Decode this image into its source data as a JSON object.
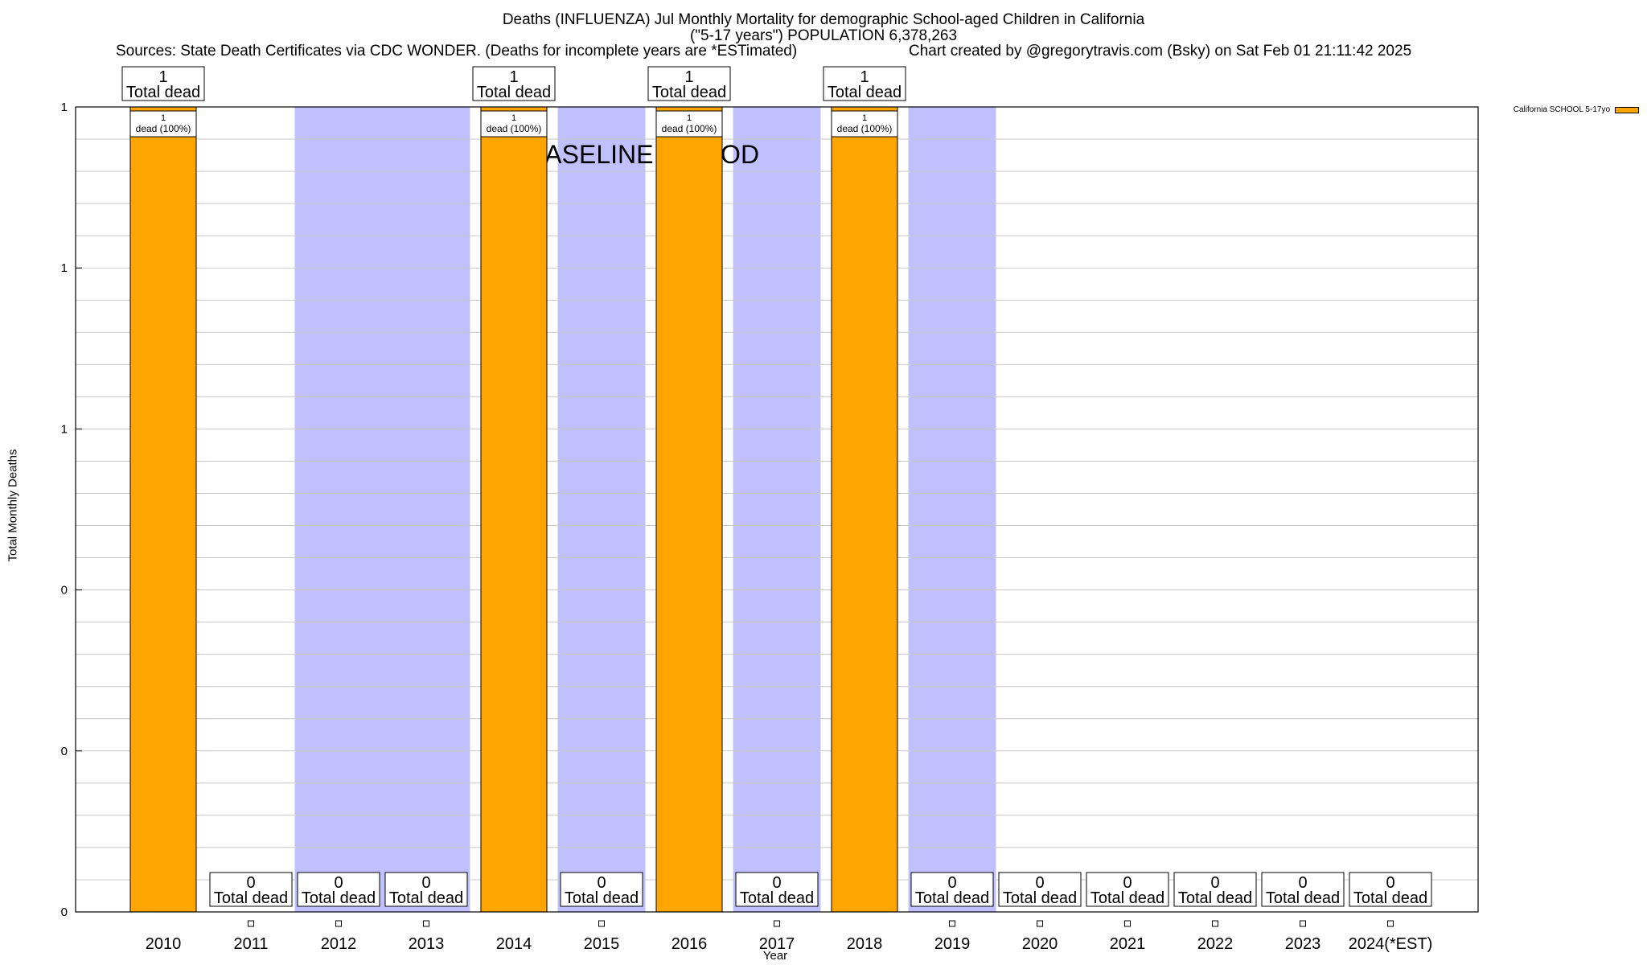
{
  "chart_data": {
    "type": "bar",
    "title": "Deaths (INFLUENZA) Jul Monthly Mortality for demographic School-aged Children in California",
    "subtitle": "(\"5-17 years\") POPULATION 6,378,263",
    "source": "Sources: State Death Certificates via CDC WONDER. (Deaths for incomplete years are *ESTimated)",
    "credit": "Chart created by @gregorytravis.com (Bsky) on Sat Feb 01 21:11:42 2025",
    "xlabel": "Year",
    "ylabel": "Total Monthly Deaths",
    "categories": [
      "2010",
      "2011",
      "2012",
      "2013",
      "2014",
      "2015",
      "2016",
      "2017",
      "2018",
      "2019",
      "2020",
      "2021",
      "2022",
      "2023",
      "2024(*EST)"
    ],
    "series": [
      {
        "name": "California SCHOOL 5-17yo",
        "color": "#ffa500",
        "values": [
          1,
          0,
          0,
          0,
          1,
          0,
          1,
          0,
          1,
          0,
          0,
          0,
          0,
          0,
          0
        ]
      }
    ],
    "total_labels": [
      "1\nTotal dead",
      "0\nTotal dead",
      "0\nTotal dead",
      "0\nTotal dead",
      "1\nTotal dead",
      "0\nTotal dead",
      "1\nTotal dead",
      "0\nTotal dead",
      "1\nTotal dead",
      "0\nTotal dead",
      "0\nTotal dead",
      "0\nTotal dead",
      "0\nTotal dead",
      "0\nTotal dead",
      "0\nTotal dead"
    ],
    "bar_labels": [
      "1\ndead (100%)",
      "",
      "",
      "",
      "1\ndead (100%)",
      "",
      "1\ndead (100%)",
      "",
      "1\ndead (100%)",
      "",
      "",
      "",
      "",
      "",
      ""
    ],
    "ylim": [
      0,
      1
    ],
    "ytick_values": [
      0,
      0.2,
      0.4,
      0.6,
      0.8,
      1.0
    ],
    "ytick_labels": [
      "0",
      "0",
      "0",
      "1",
      "1",
      "1"
    ],
    "y_minor_per_major": 5,
    "baseline_period": {
      "label": "BASELINE PERIOD",
      "color": "#c0c0ff",
      "ranges": [
        [
          "2012",
          "2013"
        ],
        [
          "2015",
          "2015"
        ],
        [
          "2017",
          "2017"
        ],
        [
          "2019",
          "2019"
        ]
      ]
    },
    "legend_position": "top-right",
    "grid": true
  }
}
